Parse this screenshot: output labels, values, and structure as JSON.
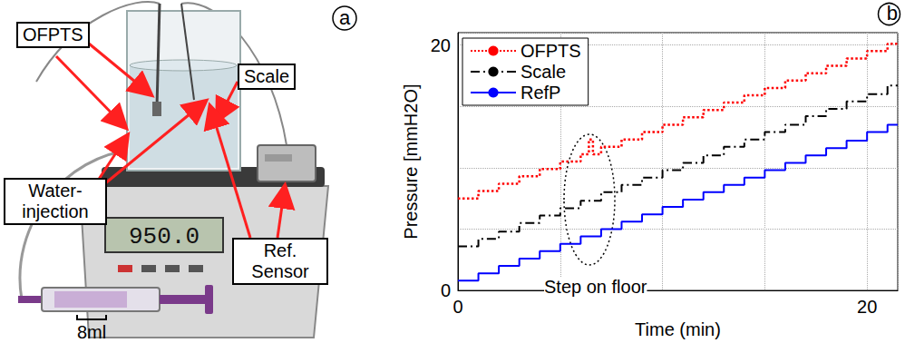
{
  "figure": {
    "panel_a": {
      "letter": "a",
      "labels": {
        "sensor": "OFPTS",
        "scale": "Scale",
        "injection": "Water-injection",
        "reference": "Ref. Sensor"
      },
      "scale_display": "950.0",
      "syringe_volume": "8ml"
    },
    "panel_b": {
      "letter": "b"
    }
  },
  "chart_data": {
    "type": "line",
    "x_label": "Time (min)",
    "y_label": "Pressure [mmH2O]",
    "x": [
      0,
      1,
      2,
      3,
      4,
      5,
      6,
      6.4,
      6.6,
      7,
      8,
      9,
      10,
      11,
      12,
      13,
      14,
      15,
      16,
      17,
      18,
      19,
      20,
      21,
      21.5
    ],
    "series": [
      {
        "name": "OFPTS",
        "color": "#ff0000",
        "line_style": "dotted",
        "values": [
          7.5,
          8.1,
          8.7,
          9.3,
          9.9,
          10.5,
          11.1,
          12.3,
          11.1,
          11.7,
          12.3,
          12.9,
          13.5,
          14.1,
          14.7,
          15.3,
          15.9,
          16.5,
          17.1,
          17.7,
          18.3,
          18.9,
          19.5,
          20.1,
          20.1
        ]
      },
      {
        "name": "Scale",
        "color": "#000000",
        "line_style": "dashdot",
        "values": [
          3.6,
          4.2,
          4.8,
          5.5,
          6.1,
          6.7,
          7.3,
          7.3,
          7.3,
          8.0,
          8.6,
          9.2,
          9.8,
          10.4,
          11.0,
          11.7,
          12.3,
          12.9,
          13.5,
          14.2,
          14.8,
          15.4,
          16.0,
          16.7,
          16.7
        ]
      },
      {
        "name": "RefP",
        "color": "#0000ff",
        "line_style": "solid",
        "values": [
          0.8,
          1.4,
          2.0,
          2.6,
          3.2,
          3.8,
          4.4,
          4.4,
          4.4,
          5.0,
          5.6,
          6.2,
          6.8,
          7.4,
          8.0,
          8.6,
          9.2,
          9.8,
          10.4,
          11.0,
          11.6,
          12.2,
          12.9,
          13.5,
          13.5
        ]
      }
    ],
    "xlim": [
      0,
      21.5
    ],
    "xticks": [
      0,
      20
    ],
    "ylim": [
      0,
      21
    ],
    "yticks": [
      0,
      20
    ],
    "grid": true,
    "legend": "upper left",
    "annotations": [
      {
        "text": "Step on floor"
      }
    ]
  }
}
